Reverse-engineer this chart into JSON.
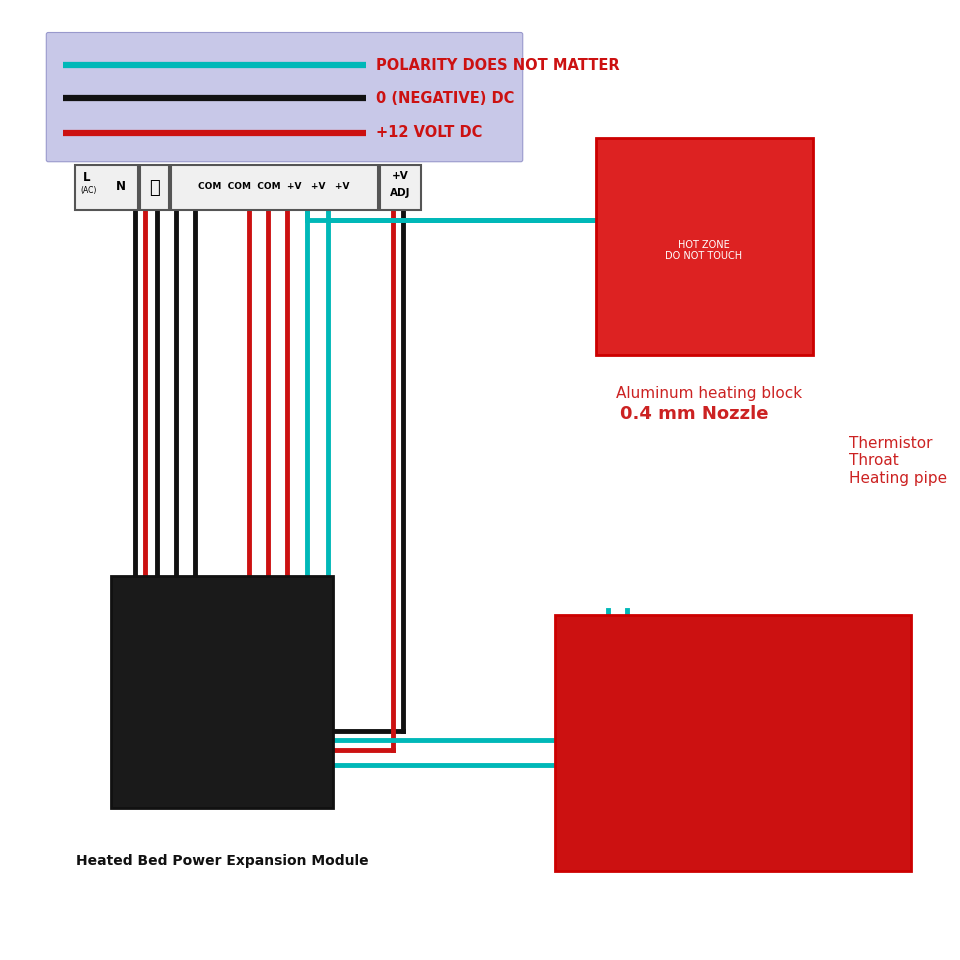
{
  "bg_color": "#ffffff",
  "legend_bg": "#c8c8e8",
  "legend_items": [
    {
      "label": "POLARITY DOES NOT MATTER",
      "color": "#00c8c8"
    },
    {
      "label": "0 (NEGATIVE) DC",
      "color": "#000000"
    },
    {
      "label": "+12 VOLT DC",
      "color": "#cc0000"
    }
  ],
  "psu_labels": [
    "L\n(AC)",
    "N",
    "⊥",
    "COM COM COM +V  +V  +V",
    "+V\nADJ"
  ],
  "wire_cyan": "#00b0b0",
  "wire_black": "#111111",
  "wire_red": "#cc0000",
  "heated_bed_label": "Heated Bed Power Expansion Module",
  "hotend_label1": "Aluminum heating block",
  "hotend_label2": "0.4 mm Nozzle",
  "hotend_label3": "Thermistor\nThroat\nHeating pipe"
}
